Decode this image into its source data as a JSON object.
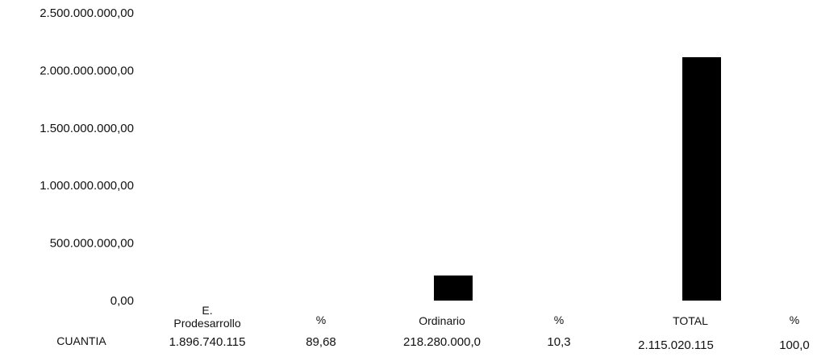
{
  "chart_data": {
    "type": "bar",
    "title": "",
    "xlabel": "",
    "ylabel": "",
    "ylim": [
      0,
      2500000000
    ],
    "yticks": [
      0,
      500000000,
      1000000000,
      1500000000,
      2000000000,
      2500000000
    ],
    "ytick_labels": [
      "0,00",
      "500.000.000,00",
      "1.000.000.000,00",
      "1.500.000.000,00",
      "2.000.000.000,00",
      "2.500.000.000,00"
    ],
    "grid": false,
    "categories": [
      [
        "E.",
        "Prodesarrollo"
      ],
      [
        "%"
      ],
      [
        "Ordinario"
      ],
      [
        "%"
      ],
      [
        "TOTAL"
      ],
      [
        "%"
      ]
    ],
    "series": [
      {
        "name": "CUANTIA",
        "values": [
          1896740115,
          89.68,
          218280000,
          10.3,
          2115020115,
          100
        ],
        "display": [
          "1.896.740.115",
          "89,68",
          "218.280.000,0",
          "10,3",
          "2.115.020.115",
          "100,0"
        ]
      }
    ],
    "bar_color": "#000000"
  }
}
